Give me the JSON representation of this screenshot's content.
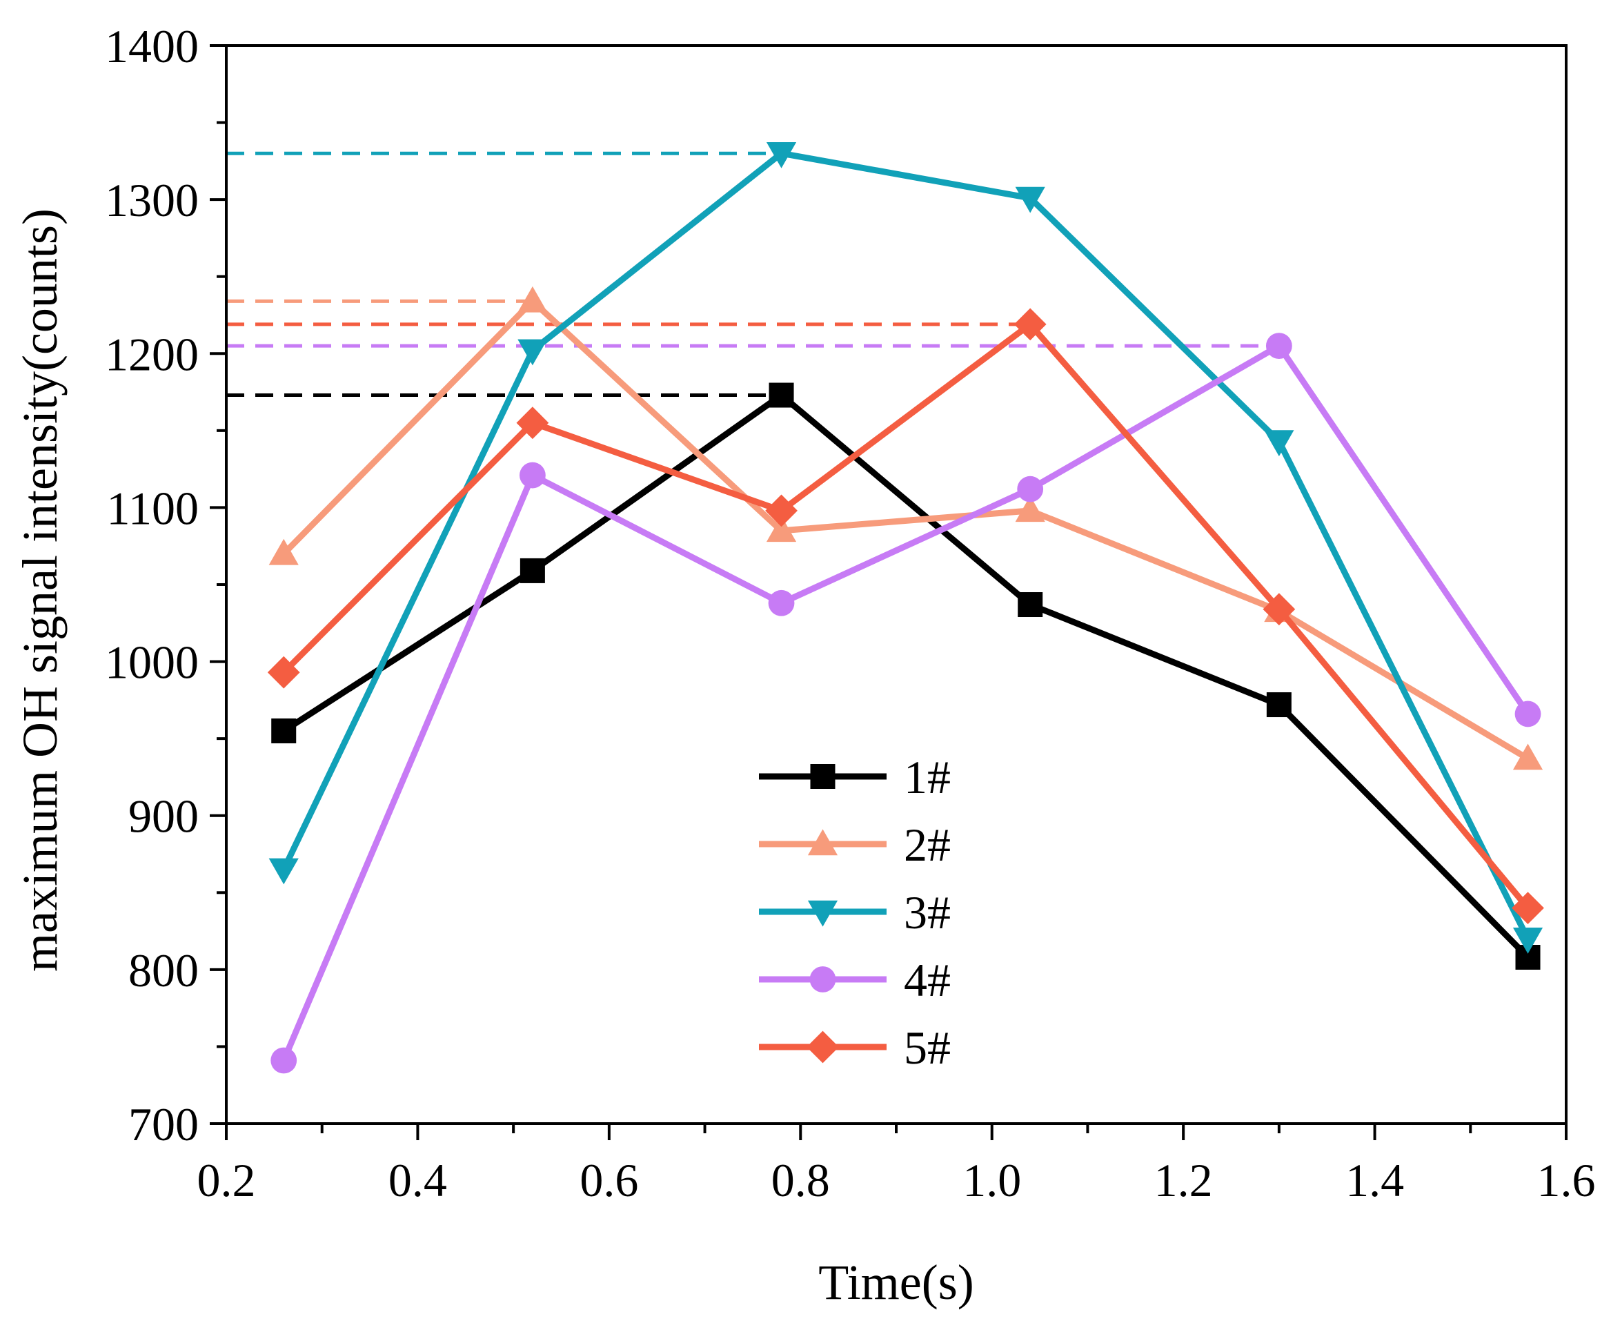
{
  "chart_data": {
    "type": "line",
    "title": "",
    "xlabel": "Time(s)",
    "ylabel": "maximum OH signal intensity(counts)",
    "xlim": [
      0.2,
      1.6
    ],
    "ylim": [
      700,
      1400
    ],
    "x_ticks": [
      "0.2",
      "0.4",
      "0.6",
      "0.8",
      "1.0",
      "1.2",
      "1.4",
      "1.6"
    ],
    "y_ticks": [
      "700",
      "800",
      "900",
      "1000",
      "1100",
      "1200",
      "1300",
      "1400"
    ],
    "x": [
      0.26,
      0.52,
      0.78,
      1.04,
      1.3,
      1.56
    ],
    "grid": false,
    "legend_position": "bottom-center",
    "series": [
      {
        "name": "1#",
        "color": "#000000",
        "marker": "square",
        "values": [
          955,
          1059,
          1173,
          1037,
          972,
          808
        ],
        "max_line": 1173,
        "max_line_x_end": 0.78
      },
      {
        "name": "2#",
        "color": "#F79B7B",
        "marker": "triangle-up",
        "values": [
          1070,
          1234,
          1085,
          1098,
          1033,
          937
        ],
        "max_line": 1234,
        "max_line_x_end": 0.52
      },
      {
        "name": "3#",
        "color": "#11A1B8",
        "marker": "triangle-down",
        "values": [
          865,
          1202,
          1330,
          1301,
          1143,
          820
        ],
        "max_line": 1330,
        "max_line_x_end": 0.78
      },
      {
        "name": "4#",
        "color": "#C77BF5",
        "marker": "circle",
        "values": [
          741,
          1121,
          1038,
          1112,
          1205,
          966
        ],
        "max_line": 1205,
        "max_line_x_end": 1.3
      },
      {
        "name": "5#",
        "color": "#F45D41",
        "marker": "diamond",
        "values": [
          993,
          1155,
          1098,
          1219,
          1034,
          840
        ],
        "max_line": 1219,
        "max_line_x_end": 1.04
      }
    ]
  }
}
